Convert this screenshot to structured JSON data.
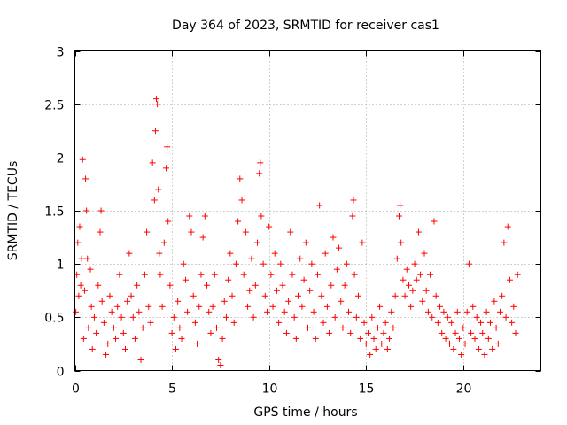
{
  "chart_data": {
    "type": "scatter",
    "title": "Day 364 of 2023, SRMTID for receiver cas1",
    "xlabel": "GPS time / hours",
    "ylabel": "SRMTID / TECUs",
    "xlim": [
      0,
      24
    ],
    "ylim": [
      0,
      3
    ],
    "xticks": [
      0,
      5,
      10,
      15,
      20
    ],
    "xtick_labels": [
      "0",
      "5",
      "10",
      "15",
      "20"
    ],
    "yticks": [
      0,
      0.5,
      1,
      1.5,
      2,
      2.5,
      3
    ],
    "ytick_labels": [
      "0",
      "0.5",
      "1",
      "1.5",
      "2",
      "2.5",
      "3"
    ],
    "grid": true,
    "marker": "+",
    "color": "#ff0000",
    "series": [
      {
        "name": "SRMTID",
        "points": [
          [
            0.05,
            0.55
          ],
          [
            0.1,
            0.9
          ],
          [
            0.15,
            1.2
          ],
          [
            0.2,
            0.7
          ],
          [
            0.25,
            1.35
          ],
          [
            0.3,
            0.8
          ],
          [
            0.35,
            1.05
          ],
          [
            0.4,
            1.98
          ],
          [
            0.45,
            0.3
          ],
          [
            0.5,
            0.75
          ],
          [
            0.55,
            1.8
          ],
          [
            0.6,
            1.5
          ],
          [
            0.65,
            1.05
          ],
          [
            0.7,
            0.4
          ],
          [
            0.8,
            0.95
          ],
          [
            0.85,
            0.6
          ],
          [
            0.9,
            0.2
          ],
          [
            1.0,
            0.5
          ],
          [
            1.1,
            0.35
          ],
          [
            1.2,
            0.8
          ],
          [
            1.3,
            1.3
          ],
          [
            1.35,
            1.5
          ],
          [
            1.4,
            0.65
          ],
          [
            1.5,
            0.45
          ],
          [
            1.6,
            0.15
          ],
          [
            1.7,
            0.25
          ],
          [
            1.8,
            0.7
          ],
          [
            1.9,
            0.55
          ],
          [
            2.0,
            0.4
          ],
          [
            2.1,
            0.3
          ],
          [
            2.2,
            0.6
          ],
          [
            2.3,
            0.9
          ],
          [
            2.4,
            0.5
          ],
          [
            2.5,
            0.35
          ],
          [
            2.6,
            0.2
          ],
          [
            2.7,
            0.65
          ],
          [
            2.8,
            1.1
          ],
          [
            2.9,
            0.7
          ],
          [
            3.0,
            0.5
          ],
          [
            3.1,
            0.3
          ],
          [
            3.2,
            0.8
          ],
          [
            3.3,
            0.55
          ],
          [
            3.4,
            0.1
          ],
          [
            3.5,
            0.4
          ],
          [
            3.6,
            0.9
          ],
          [
            3.7,
            1.3
          ],
          [
            3.8,
            0.6
          ],
          [
            3.9,
            0.45
          ],
          [
            4.0,
            1.95
          ],
          [
            4.1,
            1.6
          ],
          [
            4.15,
            2.25
          ],
          [
            4.2,
            2.55
          ],
          [
            4.25,
            2.5
          ],
          [
            4.3,
            1.7
          ],
          [
            4.35,
            1.1
          ],
          [
            4.4,
            0.9
          ],
          [
            4.5,
            0.6
          ],
          [
            4.6,
            1.2
          ],
          [
            4.7,
            1.9
          ],
          [
            4.75,
            2.1
          ],
          [
            4.8,
            1.4
          ],
          [
            4.9,
            0.8
          ],
          [
            5.0,
            0.35
          ],
          [
            5.1,
            0.5
          ],
          [
            5.2,
            0.2
          ],
          [
            5.3,
            0.65
          ],
          [
            5.4,
            0.4
          ],
          [
            5.5,
            0.3
          ],
          [
            5.6,
            1.0
          ],
          [
            5.7,
            0.85
          ],
          [
            5.8,
            0.55
          ],
          [
            5.9,
            1.45
          ],
          [
            6.0,
            1.3
          ],
          [
            6.1,
            0.7
          ],
          [
            6.2,
            0.45
          ],
          [
            6.3,
            0.25
          ],
          [
            6.4,
            0.6
          ],
          [
            6.5,
            0.9
          ],
          [
            6.6,
            1.25
          ],
          [
            6.7,
            1.45
          ],
          [
            6.8,
            0.8
          ],
          [
            6.9,
            0.55
          ],
          [
            7.0,
            0.35
          ],
          [
            7.1,
            0.6
          ],
          [
            7.2,
            0.9
          ],
          [
            7.3,
            0.4
          ],
          [
            7.4,
            0.1
          ],
          [
            7.5,
            0.05
          ],
          [
            7.6,
            0.3
          ],
          [
            7.7,
            0.65
          ],
          [
            7.8,
            0.5
          ],
          [
            7.9,
            0.85
          ],
          [
            8.0,
            1.1
          ],
          [
            8.1,
            0.7
          ],
          [
            8.2,
            0.45
          ],
          [
            8.3,
            1.0
          ],
          [
            8.4,
            1.4
          ],
          [
            8.5,
            1.8
          ],
          [
            8.6,
            1.6
          ],
          [
            8.7,
            0.9
          ],
          [
            8.8,
            1.3
          ],
          [
            8.9,
            0.6
          ],
          [
            9.0,
            0.75
          ],
          [
            9.1,
            1.05
          ],
          [
            9.2,
            0.5
          ],
          [
            9.3,
            0.8
          ],
          [
            9.4,
            1.2
          ],
          [
            9.5,
            1.85
          ],
          [
            9.55,
            1.95
          ],
          [
            9.6,
            1.45
          ],
          [
            9.7,
            1.0
          ],
          [
            9.8,
            0.7
          ],
          [
            9.9,
            0.55
          ],
          [
            10.0,
            1.35
          ],
          [
            10.1,
            0.9
          ],
          [
            10.2,
            0.6
          ],
          [
            10.3,
            1.1
          ],
          [
            10.4,
            0.75
          ],
          [
            10.5,
            0.45
          ],
          [
            10.6,
            1.0
          ],
          [
            10.7,
            0.8
          ],
          [
            10.8,
            0.55
          ],
          [
            10.9,
            0.35
          ],
          [
            11.0,
            0.65
          ],
          [
            11.1,
            1.3
          ],
          [
            11.2,
            0.9
          ],
          [
            11.3,
            0.5
          ],
          [
            11.4,
            0.3
          ],
          [
            11.5,
            0.7
          ],
          [
            11.6,
            1.05
          ],
          [
            11.7,
            0.6
          ],
          [
            11.8,
            0.85
          ],
          [
            11.9,
            1.2
          ],
          [
            12.0,
            0.4
          ],
          [
            12.1,
            0.75
          ],
          [
            12.2,
            1.0
          ],
          [
            12.3,
            0.55
          ],
          [
            12.4,
            0.3
          ],
          [
            12.5,
            0.9
          ],
          [
            12.6,
            1.55
          ],
          [
            12.7,
            0.7
          ],
          [
            12.8,
            0.45
          ],
          [
            12.9,
            1.1
          ],
          [
            13.0,
            0.6
          ],
          [
            13.1,
            0.35
          ],
          [
            13.2,
            0.8
          ],
          [
            13.3,
            1.25
          ],
          [
            13.4,
            0.5
          ],
          [
            13.5,
            0.95
          ],
          [
            13.6,
            1.15
          ],
          [
            13.7,
            0.65
          ],
          [
            13.8,
            0.4
          ],
          [
            13.9,
            0.8
          ],
          [
            14.0,
            1.0
          ],
          [
            14.1,
            0.55
          ],
          [
            14.2,
            0.35
          ],
          [
            14.3,
            1.45
          ],
          [
            14.35,
            1.6
          ],
          [
            14.4,
            0.9
          ],
          [
            14.5,
            0.5
          ],
          [
            14.6,
            0.7
          ],
          [
            14.7,
            0.3
          ],
          [
            14.8,
            1.2
          ],
          [
            14.9,
            0.45
          ],
          [
            15.0,
            0.25
          ],
          [
            15.1,
            0.35
          ],
          [
            15.2,
            0.15
          ],
          [
            15.3,
            0.5
          ],
          [
            15.4,
            0.3
          ],
          [
            15.5,
            0.2
          ],
          [
            15.6,
            0.4
          ],
          [
            15.7,
            0.6
          ],
          [
            15.8,
            0.25
          ],
          [
            15.9,
            0.35
          ],
          [
            16.0,
            0.45
          ],
          [
            16.1,
            0.2
          ],
          [
            16.2,
            0.3
          ],
          [
            16.3,
            0.55
          ],
          [
            16.4,
            0.4
          ],
          [
            16.5,
            0.7
          ],
          [
            16.6,
            1.05
          ],
          [
            16.7,
            1.45
          ],
          [
            16.75,
            1.55
          ],
          [
            16.8,
            1.2
          ],
          [
            16.9,
            0.85
          ],
          [
            17.0,
            0.7
          ],
          [
            17.1,
            0.95
          ],
          [
            17.2,
            0.8
          ],
          [
            17.3,
            0.6
          ],
          [
            17.4,
            0.75
          ],
          [
            17.5,
            1.0
          ],
          [
            17.6,
            0.85
          ],
          [
            17.7,
            1.3
          ],
          [
            17.8,
            0.9
          ],
          [
            17.9,
            0.65
          ],
          [
            18.0,
            1.1
          ],
          [
            18.1,
            0.75
          ],
          [
            18.2,
            0.55
          ],
          [
            18.3,
            0.9
          ],
          [
            18.4,
            0.5
          ],
          [
            18.5,
            1.4
          ],
          [
            18.6,
            0.7
          ],
          [
            18.7,
            0.45
          ],
          [
            18.8,
            0.6
          ],
          [
            18.9,
            0.35
          ],
          [
            19.0,
            0.55
          ],
          [
            19.1,
            0.3
          ],
          [
            19.2,
            0.5
          ],
          [
            19.3,
            0.25
          ],
          [
            19.4,
            0.45
          ],
          [
            19.5,
            0.2
          ],
          [
            19.6,
            0.35
          ],
          [
            19.7,
            0.55
          ],
          [
            19.8,
            0.3
          ],
          [
            19.9,
            0.15
          ],
          [
            20.0,
            0.4
          ],
          [
            20.1,
            0.25
          ],
          [
            20.2,
            0.55
          ],
          [
            20.3,
            1.0
          ],
          [
            20.4,
            0.35
          ],
          [
            20.5,
            0.6
          ],
          [
            20.6,
            0.3
          ],
          [
            20.7,
            0.5
          ],
          [
            20.8,
            0.2
          ],
          [
            20.9,
            0.45
          ],
          [
            21.0,
            0.35
          ],
          [
            21.1,
            0.15
          ],
          [
            21.2,
            0.55
          ],
          [
            21.3,
            0.3
          ],
          [
            21.4,
            0.45
          ],
          [
            21.5,
            0.2
          ],
          [
            21.6,
            0.65
          ],
          [
            21.7,
            0.4
          ],
          [
            21.8,
            0.25
          ],
          [
            21.9,
            0.55
          ],
          [
            22.0,
            0.7
          ],
          [
            22.1,
            1.2
          ],
          [
            22.2,
            0.5
          ],
          [
            22.3,
            1.35
          ],
          [
            22.4,
            0.85
          ],
          [
            22.5,
            0.45
          ],
          [
            22.6,
            0.6
          ],
          [
            22.7,
            0.35
          ],
          [
            22.8,
            0.9
          ]
        ]
      }
    ]
  }
}
